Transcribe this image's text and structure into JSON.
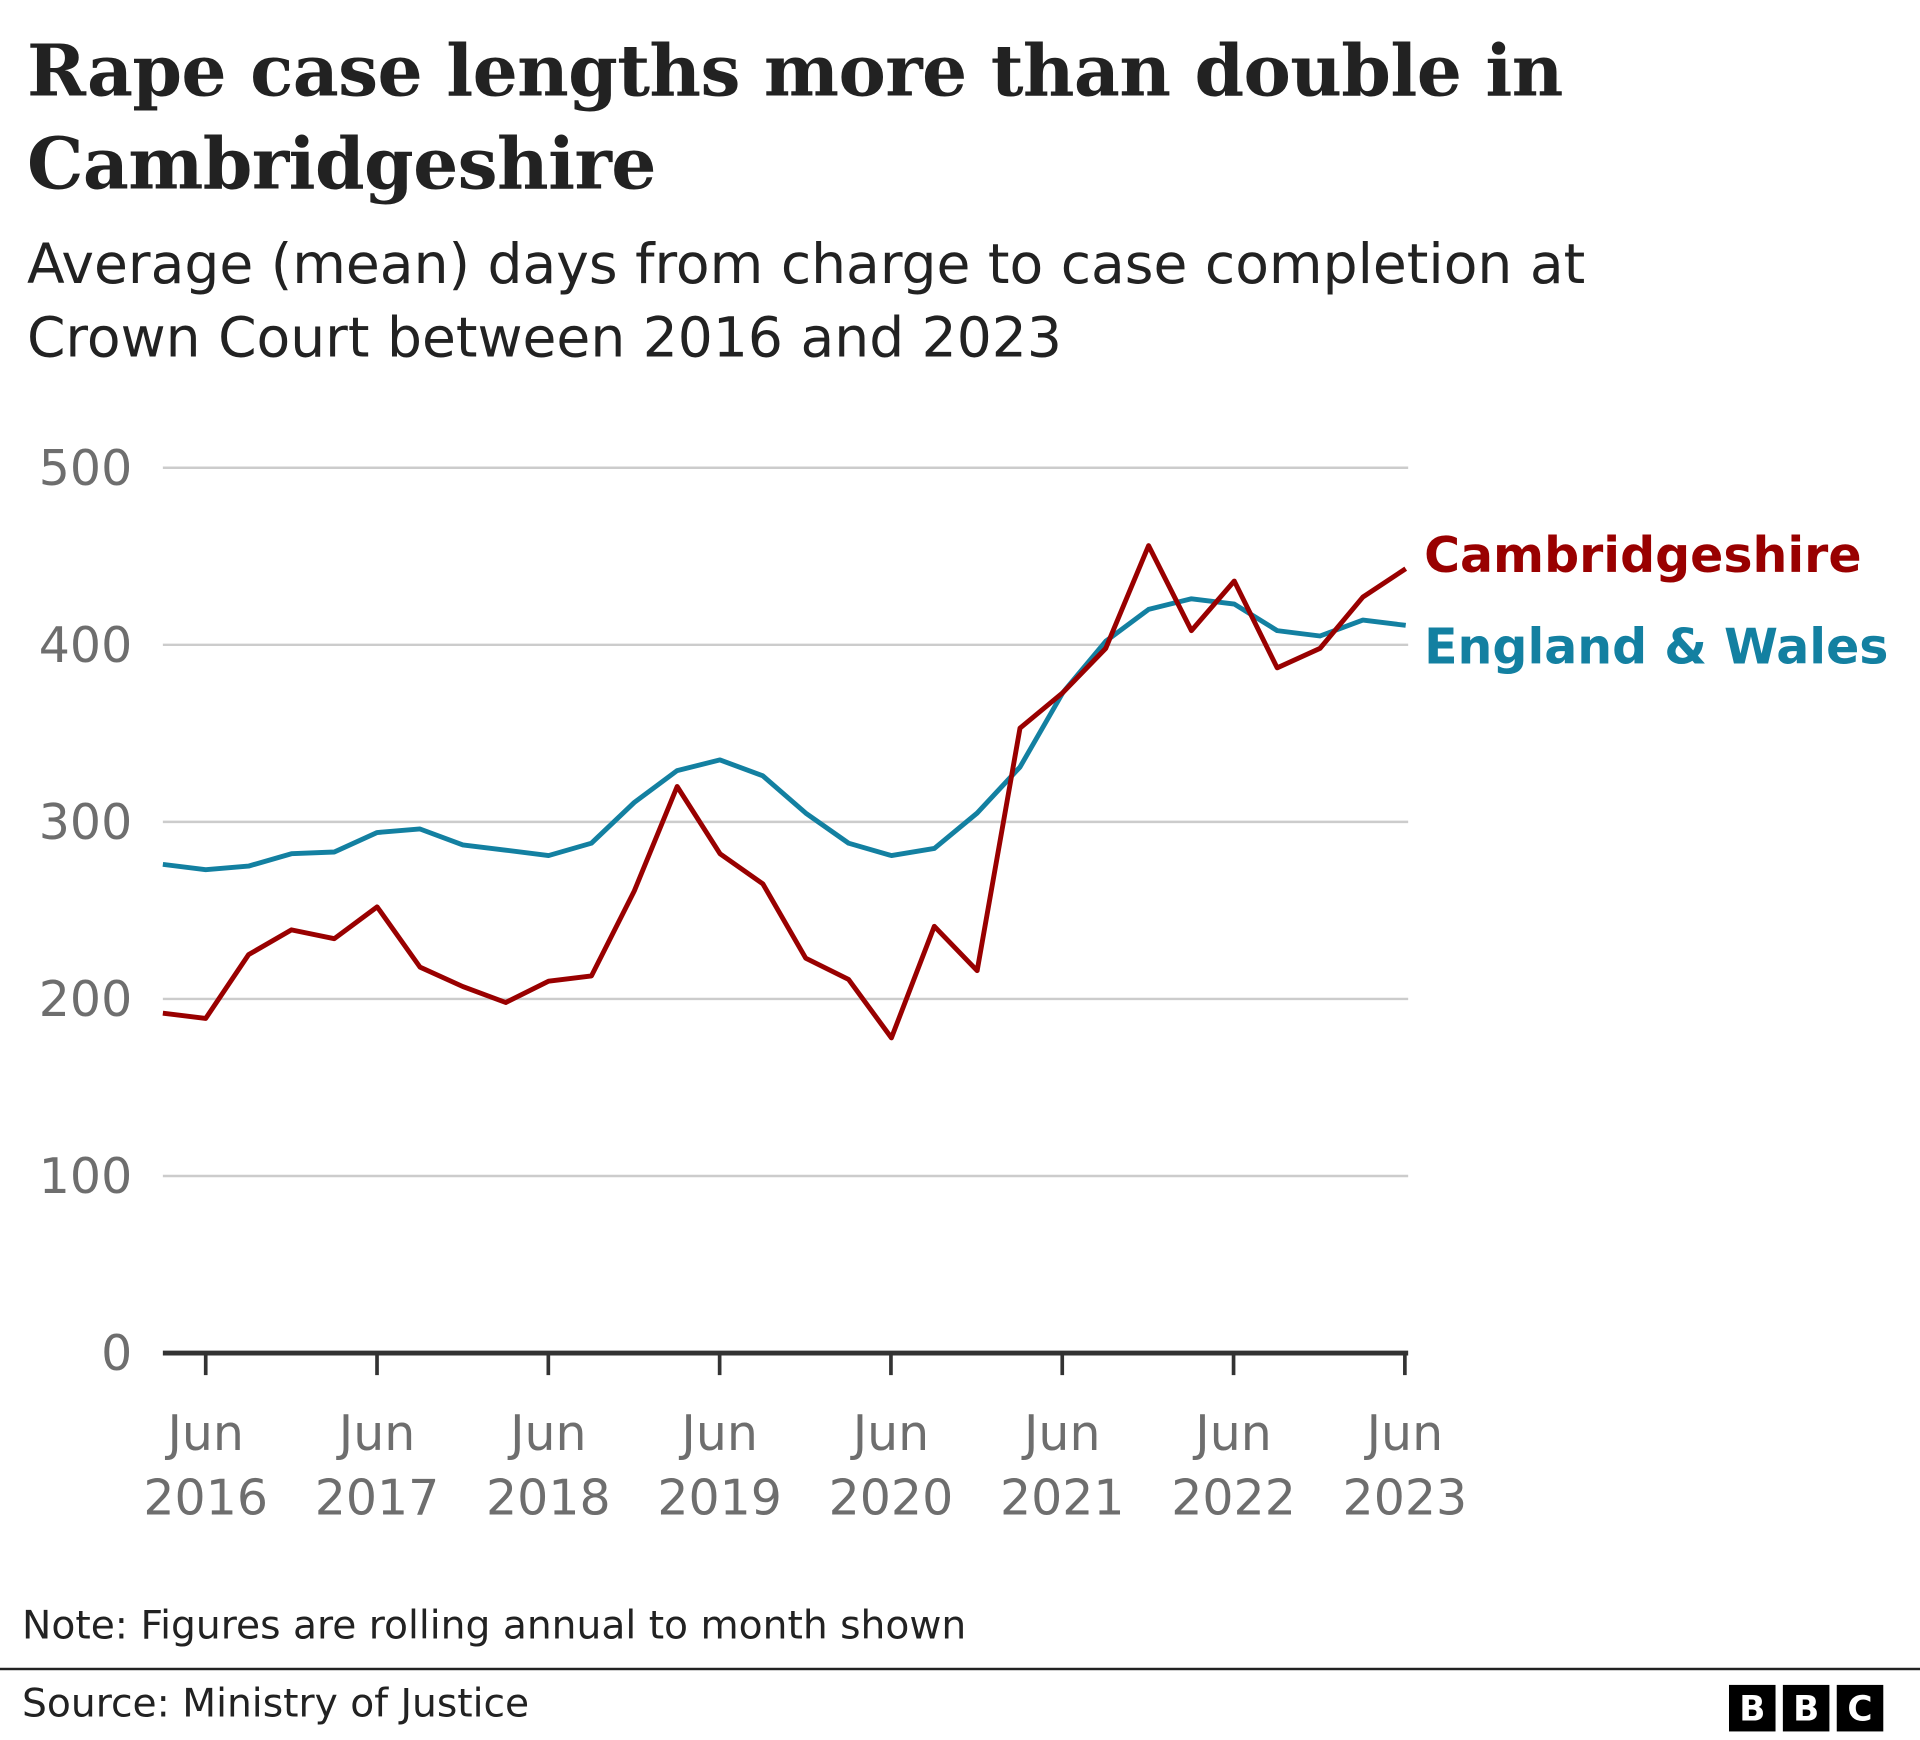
{
  "chart_data": {
    "type": "line",
    "title": "Rape case lengths more than double in Cambridgeshire",
    "subtitle": "Average (mean) days from charge to case completion at Crown Court between 2016 and 2023",
    "xlabel": "",
    "ylabel": "",
    "ylim": [
      0,
      500
    ],
    "yticks": [
      "0",
      "100",
      "200",
      "300",
      "400",
      "500"
    ],
    "xticks": [
      {
        "month": "Jun",
        "year": "2016"
      },
      {
        "month": "Jun",
        "year": "2017"
      },
      {
        "month": "Jun",
        "year": "2018"
      },
      {
        "month": "Jun",
        "year": "2019"
      },
      {
        "month": "Jun",
        "year": "2020"
      },
      {
        "month": "Jun",
        "year": "2021"
      },
      {
        "month": "Jun",
        "year": "2022"
      },
      {
        "month": "Jun",
        "year": "2023"
      }
    ],
    "x_start": "Mar 2016",
    "x_end": "Jun 2023",
    "x_step": "quarterly",
    "grid": true,
    "legend": "right, direct labels",
    "series": [
      {
        "name": "Cambridgeshire",
        "color": "#990000",
        "values": [
          192,
          189,
          225,
          239,
          234,
          252,
          218,
          207,
          198,
          210,
          213,
          261,
          320,
          282,
          265,
          223,
          211,
          178,
          241,
          216,
          353,
          373,
          398,
          456,
          408,
          436,
          387,
          398,
          427,
          443
        ]
      },
      {
        "name": "England & Wales",
        "color": "#1380A1",
        "values": [
          276,
          273,
          275,
          282,
          283,
          294,
          296,
          287,
          284,
          281,
          288,
          311,
          329,
          335,
          326,
          305,
          288,
          281,
          285,
          305,
          331,
          373,
          402,
          420,
          426,
          423,
          408,
          405,
          414,
          411
        ]
      }
    ]
  },
  "note": "Note: Figures are rolling annual to month shown",
  "source": "Source: Ministry of Justice",
  "logo": [
    "B",
    "B",
    "C"
  ]
}
